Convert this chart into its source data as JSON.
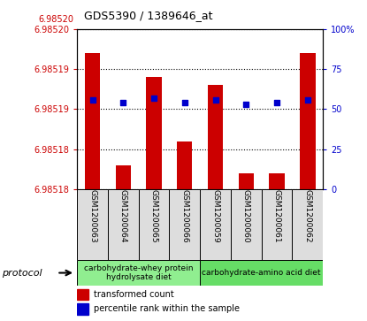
{
  "title": "GDS5390 / 1389646_at",
  "samples": [
    "GSM1200063",
    "GSM1200064",
    "GSM1200065",
    "GSM1200066",
    "GSM1200059",
    "GSM1200060",
    "GSM1200061",
    "GSM1200062"
  ],
  "transformed_counts": [
    6.985195,
    6.985181,
    6.985192,
    6.985184,
    6.985191,
    6.98518,
    6.98518,
    6.985195
  ],
  "percentile_ranks": [
    56,
    54,
    57,
    54,
    56,
    53,
    54,
    56
  ],
  "ylim_min": 6.985178,
  "ylim_max": 6.985198,
  "y_axis_color": "#cc0000",
  "bar_color": "#cc0000",
  "dot_color": "#0000cc",
  "bar_bottom": 6.985178,
  "right_ylim": [
    0,
    100
  ],
  "right_yticks": [
    0,
    25,
    50,
    75,
    100
  ],
  "right_yticklabels": [
    "0",
    "25",
    "50",
    "75",
    "100%"
  ],
  "protocol_group1_label": "carbohydrate-whey protein\nhydrolysate diet",
  "protocol_group2_label": "carbohydrate-amino acid diet",
  "protocol_color1": "#90ee90",
  "protocol_color2": "#66dd66",
  "legend_label1": "transformed count",
  "legend_label2": "percentile rank within the sample",
  "legend_color1": "#cc0000",
  "legend_color2": "#0000cc",
  "protocol_text": "protocol"
}
